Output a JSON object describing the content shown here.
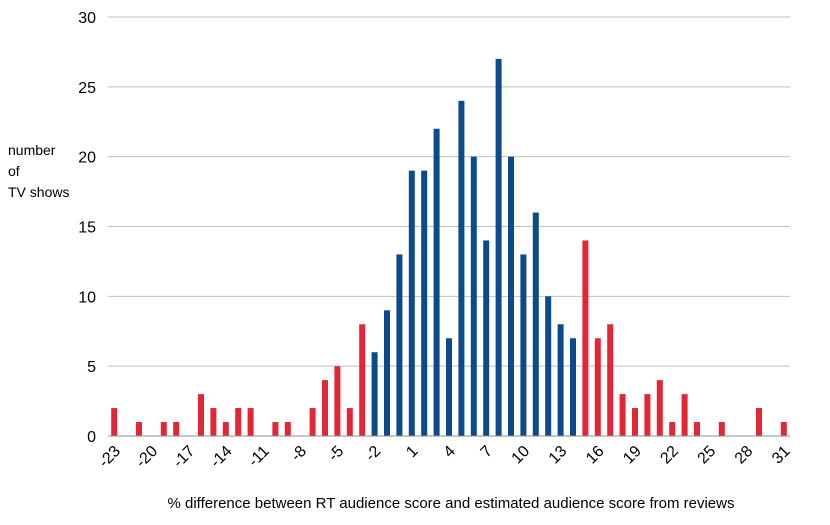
{
  "chart_data": {
    "type": "bar",
    "title": "",
    "xlabel": "% difference between RT audience score and estimated audience score from reviews",
    "ylabel_lines": [
      "number",
      "of",
      "TV shows"
    ],
    "ylim": [
      0,
      30
    ],
    "y_ticks": [
      "0",
      "5",
      "10",
      "15",
      "20",
      "25",
      "30"
    ],
    "x_tick_labels": [
      "-23",
      "-20",
      "-17",
      "-14",
      "-11",
      "-8",
      "-5",
      "-2",
      "1",
      "4",
      "7",
      "10",
      "13",
      "16",
      "19",
      "22",
      "25",
      "28",
      "31"
    ],
    "grid": "horizontal",
    "colors": {
      "outer": "#e32636",
      "inner": "#0d4a8c",
      "grid": "#bfbfbf"
    },
    "x": [
      -23,
      -22,
      -21,
      -20,
      -19,
      -18,
      -17,
      -16,
      -15,
      -14,
      -13,
      -12,
      -11,
      -10,
      -9,
      -8,
      -7,
      -6,
      -5,
      -4,
      -3,
      -2,
      -1,
      0,
      1,
      2,
      3,
      4,
      5,
      6,
      7,
      8,
      9,
      10,
      11,
      12,
      13,
      14,
      15,
      16,
      17,
      18,
      19,
      20,
      21,
      22,
      23,
      24,
      25,
      26,
      27,
      28,
      29,
      30,
      31
    ],
    "values": [
      2,
      0,
      1,
      0,
      1,
      1,
      0,
      3,
      2,
      1,
      2,
      2,
      0,
      1,
      1,
      0,
      2,
      4,
      5,
      2,
      8,
      6,
      9,
      13,
      19,
      19,
      22,
      7,
      24,
      20,
      14,
      27,
      20,
      13,
      16,
      10,
      8,
      7,
      14,
      7,
      8,
      3,
      2,
      3,
      4,
      1,
      3,
      1,
      0,
      1,
      0,
      0,
      2,
      0,
      1
    ],
    "groups": [
      "outer",
      "outer",
      "outer",
      "outer",
      "outer",
      "outer",
      "outer",
      "outer",
      "outer",
      "outer",
      "outer",
      "outer",
      "outer",
      "outer",
      "outer",
      "outer",
      "outer",
      "outer",
      "outer",
      "outer",
      "outer",
      "inner",
      "inner",
      "inner",
      "inner",
      "inner",
      "inner",
      "inner",
      "inner",
      "inner",
      "inner",
      "inner",
      "inner",
      "inner",
      "inner",
      "inner",
      "inner",
      "inner",
      "outer",
      "outer",
      "outer",
      "outer",
      "outer",
      "outer",
      "outer",
      "outer",
      "outer",
      "outer",
      "outer",
      "outer",
      "outer",
      "outer",
      "outer",
      "outer",
      "outer"
    ]
  }
}
